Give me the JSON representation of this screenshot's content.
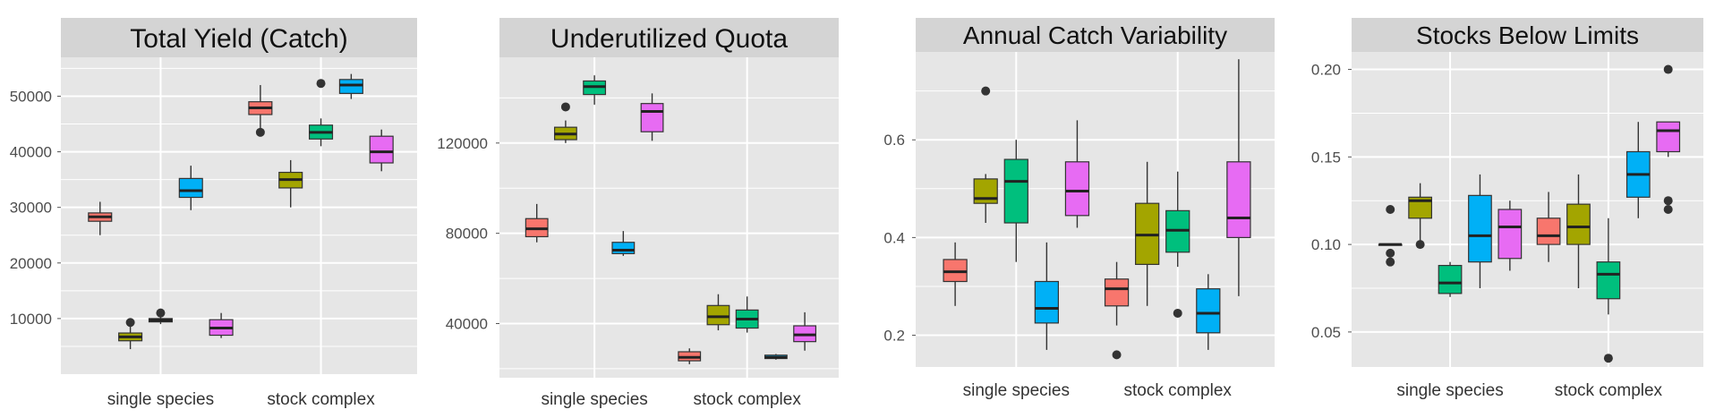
{
  "colors": {
    "panel_bg": "#E6E6E6",
    "strip_bg": "#D4D4D4",
    "grid": "#FFFFFF",
    "series": [
      "#F8766D",
      "#A3A500",
      "#00BF7D",
      "#00B0F6",
      "#E76BF3"
    ]
  },
  "chart_data": [
    {
      "type": "box",
      "title": "Total Yield (Catch)",
      "categories": [
        "single species",
        "stock complex"
      ],
      "y_ticks": [
        10000,
        20000,
        30000,
        40000,
        50000
      ],
      "y_tick_labels": [
        "10000",
        "20000",
        "30000",
        "40000",
        "50000"
      ],
      "ylim": [
        0,
        57000
      ],
      "series": [
        {
          "boxes": [
            {
              "whisker_low": 25000,
              "q1": 27500,
              "median": 28300,
              "q3": 29000,
              "whisker_high": 31000,
              "outliers": []
            },
            {
              "whisker_low": 43500,
              "q1": 46700,
              "median": 47900,
              "q3": 49000,
              "whisker_high": 52000,
              "outliers": [
                43500
              ]
            }
          ]
        },
        {
          "boxes": [
            {
              "whisker_low": 4500,
              "q1": 6000,
              "median": 6700,
              "q3": 7400,
              "whisker_high": 9300,
              "outliers": [
                9300
              ]
            },
            {
              "whisker_low": 30000,
              "q1": 33500,
              "median": 35000,
              "q3": 36300,
              "whisker_high": 38500,
              "outliers": []
            }
          ]
        },
        {
          "boxes": [
            {
              "whisker_low": 9000,
              "q1": 9400,
              "median": 9700,
              "q3": 10000,
              "whisker_high": 10500,
              "outliers": [
                11000
              ]
            },
            {
              "whisker_low": 41000,
              "q1": 42300,
              "median": 43500,
              "q3": 44800,
              "whisker_high": 46000,
              "outliers": [
                52300
              ]
            }
          ]
        },
        {
          "boxes": [
            {
              "whisker_low": 29500,
              "q1": 31800,
              "median": 33000,
              "q3": 35200,
              "whisker_high": 37500,
              "outliers": []
            },
            {
              "whisker_low": 49500,
              "q1": 50500,
              "median": 52000,
              "q3": 53000,
              "whisker_high": 54000,
              "outliers": []
            }
          ]
        },
        {
          "boxes": [
            {
              "whisker_low": 6500,
              "q1": 7000,
              "median": 8300,
              "q3": 9800,
              "whisker_high": 11000,
              "outliers": []
            },
            {
              "whisker_low": 36500,
              "q1": 38000,
              "median": 40000,
              "q3": 42800,
              "whisker_high": 44000,
              "outliers": []
            }
          ]
        }
      ]
    },
    {
      "type": "box",
      "title": "Underutilized Quota",
      "categories": [
        "single species",
        "stock complex"
      ],
      "y_ticks": [
        40000,
        80000,
        120000
      ],
      "y_tick_labels": [
        "40000",
        "80000",
        "120000"
      ],
      "ylim": [
        16000,
        158000
      ],
      "series": [
        {
          "boxes": [
            {
              "whisker_low": 76000,
              "q1": 78500,
              "median": 82000,
              "q3": 86500,
              "whisker_high": 93000,
              "outliers": []
            },
            {
              "whisker_low": 22000,
              "q1": 23500,
              "median": 25000,
              "q3": 27500,
              "whisker_high": 29000,
              "outliers": []
            }
          ]
        },
        {
          "boxes": [
            {
              "whisker_low": 120000,
              "q1": 121500,
              "median": 124000,
              "q3": 127000,
              "whisker_high": 130000,
              "outliers": [
                136000
              ]
            },
            {
              "whisker_low": 37000,
              "q1": 39500,
              "median": 43000,
              "q3": 48000,
              "whisker_high": 53000,
              "outliers": []
            }
          ]
        },
        {
          "boxes": [
            {
              "whisker_low": 137000,
              "q1": 141500,
              "median": 145000,
              "q3": 147500,
              "whisker_high": 150000,
              "outliers": []
            },
            {
              "whisker_low": 36000,
              "q1": 38000,
              "median": 42000,
              "q3": 46000,
              "whisker_high": 52000,
              "outliers": []
            }
          ]
        },
        {
          "boxes": [
            {
              "whisker_low": 70000,
              "q1": 71000,
              "median": 72500,
              "q3": 76000,
              "whisker_high": 81000,
              "outliers": []
            },
            {
              "whisker_low": 24000,
              "q1": 24500,
              "median": 25000,
              "q3": 26000,
              "whisker_high": 26500,
              "outliers": []
            }
          ]
        },
        {
          "boxes": [
            {
              "whisker_low": 121000,
              "q1": 125000,
              "median": 134000,
              "q3": 137500,
              "whisker_high": 142000,
              "outliers": []
            },
            {
              "whisker_low": 28000,
              "q1": 32000,
              "median": 35000,
              "q3": 39000,
              "whisker_high": 45000,
              "outliers": []
            }
          ]
        }
      ]
    },
    {
      "type": "box",
      "title": "Annual Catch Variability",
      "categories": [
        "single species",
        "stock complex"
      ],
      "y_ticks": [
        0.2,
        0.4,
        0.6
      ],
      "y_tick_labels": [
        "0.2",
        "0.4",
        "0.6"
      ],
      "ylim": [
        0.135,
        0.78
      ],
      "series": [
        {
          "boxes": [
            {
              "whisker_low": 0.26,
              "q1": 0.31,
              "median": 0.33,
              "q3": 0.355,
              "whisker_high": 0.39,
              "outliers": []
            },
            {
              "whisker_low": 0.22,
              "q1": 0.26,
              "median": 0.295,
              "q3": 0.315,
              "whisker_high": 0.35,
              "outliers": [
                0.16
              ]
            }
          ]
        },
        {
          "boxes": [
            {
              "whisker_low": 0.43,
              "q1": 0.47,
              "median": 0.48,
              "q3": 0.52,
              "whisker_high": 0.53,
              "outliers": [
                0.7
              ]
            },
            {
              "whisker_low": 0.26,
              "q1": 0.345,
              "median": 0.405,
              "q3": 0.47,
              "whisker_high": 0.555,
              "outliers": []
            }
          ]
        },
        {
          "boxes": [
            {
              "whisker_low": 0.35,
              "q1": 0.43,
              "median": 0.515,
              "q3": 0.56,
              "whisker_high": 0.6,
              "outliers": []
            },
            {
              "whisker_low": 0.34,
              "q1": 0.37,
              "median": 0.415,
              "q3": 0.455,
              "whisker_high": 0.535,
              "outliers": [
                0.245
              ]
            }
          ]
        },
        {
          "boxes": [
            {
              "whisker_low": 0.17,
              "q1": 0.225,
              "median": 0.255,
              "q3": 0.31,
              "whisker_high": 0.39,
              "outliers": []
            },
            {
              "whisker_low": 0.17,
              "q1": 0.205,
              "median": 0.245,
              "q3": 0.295,
              "whisker_high": 0.325,
              "outliers": []
            }
          ]
        },
        {
          "boxes": [
            {
              "whisker_low": 0.42,
              "q1": 0.445,
              "median": 0.495,
              "q3": 0.555,
              "whisker_high": 0.64,
              "outliers": []
            },
            {
              "whisker_low": 0.28,
              "q1": 0.4,
              "median": 0.44,
              "q3": 0.555,
              "whisker_high": 0.765,
              "outliers": []
            }
          ]
        }
      ]
    },
    {
      "type": "box",
      "title": "Stocks Below Limits",
      "categories": [
        "single species",
        "stock complex"
      ],
      "y_ticks": [
        0.05,
        0.1,
        0.15,
        0.2
      ],
      "y_tick_labels": [
        "0.05",
        "0.10",
        "0.15",
        "0.20"
      ],
      "ylim": [
        0.03,
        0.21
      ],
      "series": [
        {
          "boxes": [
            {
              "whisker_low": 0.1,
              "q1": 0.1,
              "median": 0.1,
              "q3": 0.1,
              "whisker_high": 0.1,
              "outliers": [
                0.12,
                0.095,
                0.09
              ]
            },
            {
              "whisker_low": 0.09,
              "q1": 0.1,
              "median": 0.105,
              "q3": 0.115,
              "whisker_high": 0.13,
              "outliers": []
            }
          ]
        },
        {
          "boxes": [
            {
              "whisker_low": 0.1,
              "q1": 0.115,
              "median": 0.125,
              "q3": 0.127,
              "whisker_high": 0.135,
              "outliers": [
                0.1
              ]
            },
            {
              "whisker_low": 0.075,
              "q1": 0.1,
              "median": 0.11,
              "q3": 0.123,
              "whisker_high": 0.14,
              "outliers": []
            }
          ]
        },
        {
          "boxes": [
            {
              "whisker_low": 0.07,
              "q1": 0.072,
              "median": 0.078,
              "q3": 0.088,
              "whisker_high": 0.09,
              "outliers": []
            },
            {
              "whisker_low": 0.06,
              "q1": 0.069,
              "median": 0.083,
              "q3": 0.09,
              "whisker_high": 0.115,
              "outliers": [
                0.035
              ]
            }
          ]
        },
        {
          "boxes": [
            {
              "whisker_low": 0.075,
              "q1": 0.09,
              "median": 0.105,
              "q3": 0.128,
              "whisker_high": 0.14,
              "outliers": []
            },
            {
              "whisker_low": 0.115,
              "q1": 0.127,
              "median": 0.14,
              "q3": 0.153,
              "whisker_high": 0.17,
              "outliers": []
            }
          ]
        },
        {
          "boxes": [
            {
              "whisker_low": 0.085,
              "q1": 0.092,
              "median": 0.11,
              "q3": 0.12,
              "whisker_high": 0.125,
              "outliers": []
            },
            {
              "whisker_low": 0.15,
              "q1": 0.153,
              "median": 0.165,
              "q3": 0.17,
              "whisker_high": 0.17,
              "outliers": [
                0.2,
                0.125,
                0.12
              ]
            }
          ]
        }
      ]
    }
  ]
}
